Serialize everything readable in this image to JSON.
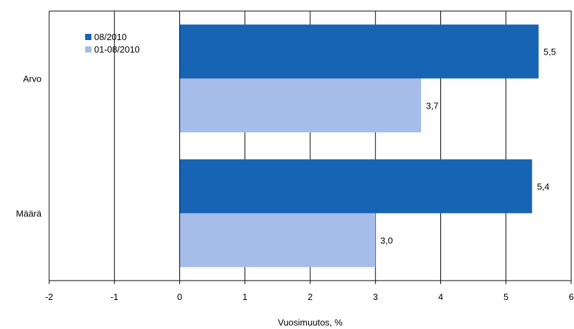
{
  "chart_data": {
    "type": "bar",
    "orientation": "horizontal",
    "categories": [
      "Arvo",
      "Määrä"
    ],
    "series": [
      {
        "name": "08/2010",
        "values": [
          5.5,
          5.4
        ],
        "labels": [
          "5,5",
          "5,4"
        ],
        "color": "#1764b4"
      },
      {
        "name": "01-08/2010",
        "values": [
          3.7,
          3.0
        ],
        "labels": [
          "3,7",
          "3,0"
        ],
        "color": "#a6bde9"
      }
    ],
    "xlabel": "Vuosimuutos, %",
    "ylabel": "",
    "xlim": [
      -2,
      6
    ],
    "xticks": [
      -2,
      -1,
      0,
      1,
      2,
      3,
      4,
      5,
      6
    ],
    "xtick_labels": [
      "-2",
      "-1",
      "0",
      "1",
      "2",
      "3",
      "4",
      "5",
      "6"
    ],
    "grid": true,
    "legend_position": "top-left"
  }
}
